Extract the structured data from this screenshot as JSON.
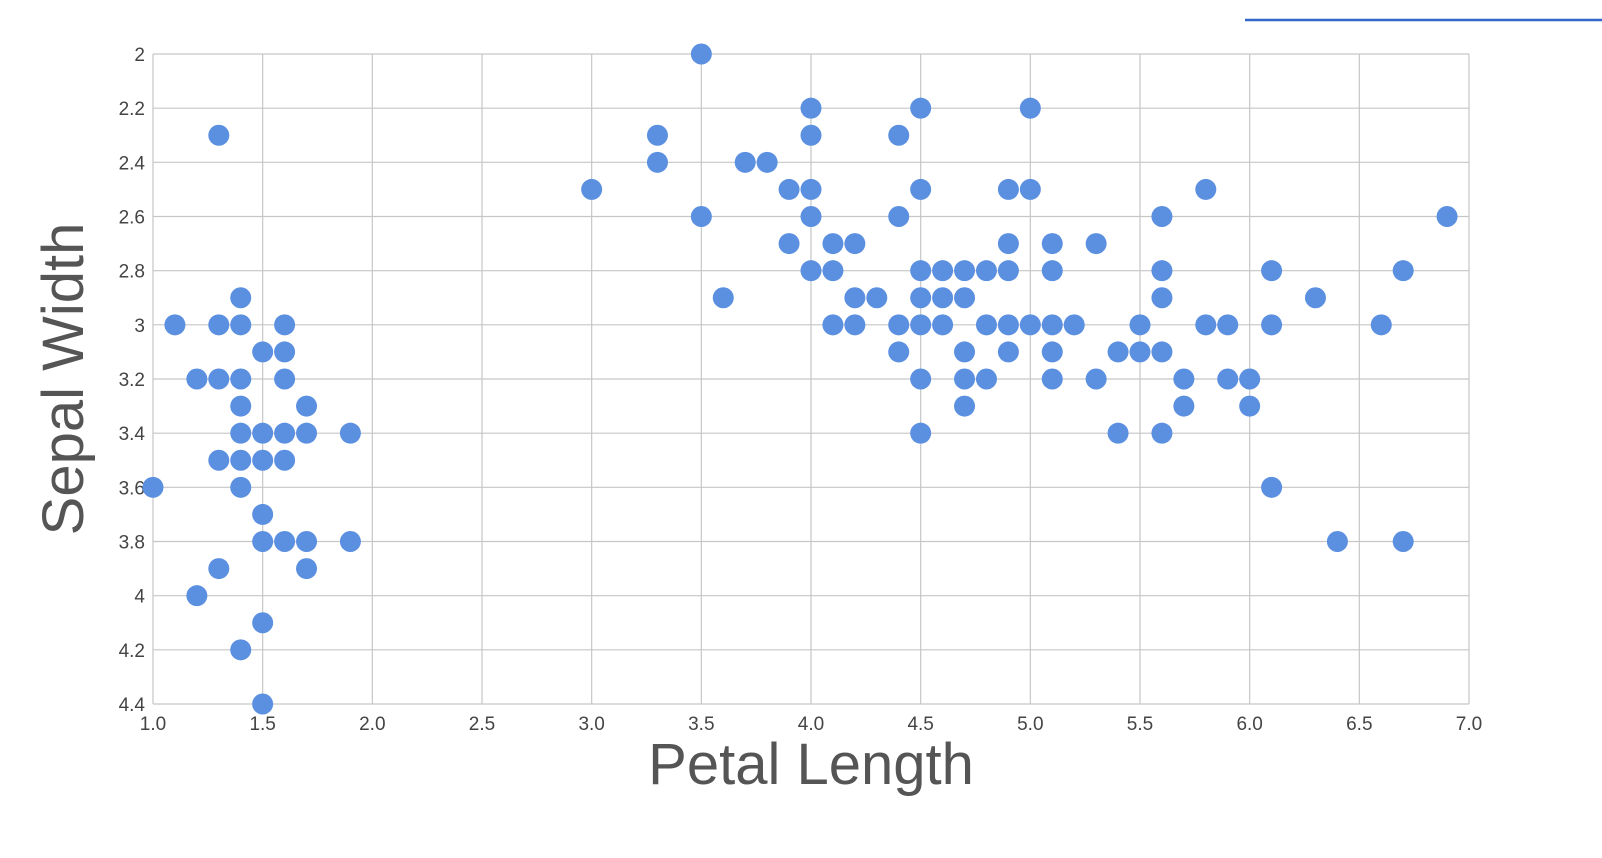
{
  "chart_data": {
    "type": "scatter",
    "title": "",
    "xlabel": "Petal Length",
    "ylabel": "Sepal Width",
    "xlim": [
      1.0,
      7.0
    ],
    "ylim": [
      2.0,
      4.4
    ],
    "y_axis_reversed": true,
    "grid": true,
    "x_ticks": [
      "1.0",
      "1.5",
      "2.0",
      "2.5",
      "3.0",
      "3.5",
      "4.0",
      "4.5",
      "5.0",
      "5.5",
      "6.0",
      "6.5",
      "7.0"
    ],
    "y_ticks": [
      "2",
      "2.2",
      "2.4",
      "2.6",
      "2.8",
      "3",
      "3.2",
      "3.4",
      "3.6",
      "3.8",
      "4",
      "4.2",
      "4.4"
    ],
    "series_color": "#5b8fe0",
    "legend_line_color": "#3366cc",
    "series": [
      {
        "points": [
          [
            1.0,
            3.6
          ],
          [
            1.1,
            3.0
          ],
          [
            1.2,
            3.2
          ],
          [
            1.2,
            4.0
          ],
          [
            1.3,
            2.3
          ],
          [
            1.3,
            3.0
          ],
          [
            1.3,
            3.2
          ],
          [
            1.3,
            3.5
          ],
          [
            1.3,
            3.9
          ],
          [
            1.4,
            2.9
          ],
          [
            1.4,
            3.0
          ],
          [
            1.4,
            3.2
          ],
          [
            1.4,
            3.3
          ],
          [
            1.4,
            3.4
          ],
          [
            1.4,
            3.5
          ],
          [
            1.4,
            3.6
          ],
          [
            1.4,
            4.2
          ],
          [
            1.5,
            3.1
          ],
          [
            1.5,
            3.4
          ],
          [
            1.5,
            3.5
          ],
          [
            1.5,
            3.7
          ],
          [
            1.5,
            3.8
          ],
          [
            1.5,
            4.1
          ],
          [
            1.5,
            4.4
          ],
          [
            1.6,
            3.0
          ],
          [
            1.6,
            3.1
          ],
          [
            1.6,
            3.2
          ],
          [
            1.6,
            3.4
          ],
          [
            1.6,
            3.5
          ],
          [
            1.6,
            3.8
          ],
          [
            1.7,
            3.3
          ],
          [
            1.7,
            3.4
          ],
          [
            1.7,
            3.8
          ],
          [
            1.7,
            3.9
          ],
          [
            1.9,
            3.4
          ],
          [
            1.9,
            3.8
          ],
          [
            3.0,
            2.5
          ],
          [
            3.3,
            2.3
          ],
          [
            3.3,
            2.4
          ],
          [
            3.5,
            2.0
          ],
          [
            3.5,
            2.6
          ],
          [
            3.6,
            2.9
          ],
          [
            3.7,
            2.4
          ],
          [
            3.8,
            2.4
          ],
          [
            3.9,
            2.5
          ],
          [
            3.9,
            2.7
          ],
          [
            4.0,
            2.2
          ],
          [
            4.0,
            2.3
          ],
          [
            4.0,
            2.5
          ],
          [
            4.0,
            2.6
          ],
          [
            4.0,
            2.8
          ],
          [
            4.1,
            2.7
          ],
          [
            4.1,
            2.8
          ],
          [
            4.1,
            3.0
          ],
          [
            4.2,
            2.7
          ],
          [
            4.2,
            2.9
          ],
          [
            4.2,
            3.0
          ],
          [
            4.3,
            2.9
          ],
          [
            4.4,
            2.3
          ],
          [
            4.4,
            2.6
          ],
          [
            4.4,
            3.0
          ],
          [
            4.4,
            3.1
          ],
          [
            4.5,
            2.2
          ],
          [
            4.5,
            2.5
          ],
          [
            4.5,
            2.8
          ],
          [
            4.5,
            2.9
          ],
          [
            4.5,
            3.0
          ],
          [
            4.5,
            3.2
          ],
          [
            4.5,
            3.4
          ],
          [
            4.6,
            2.8
          ],
          [
            4.6,
            2.9
          ],
          [
            4.6,
            3.0
          ],
          [
            4.7,
            2.8
          ],
          [
            4.7,
            2.9
          ],
          [
            4.7,
            3.1
          ],
          [
            4.7,
            3.2
          ],
          [
            4.7,
            3.3
          ],
          [
            4.8,
            2.8
          ],
          [
            4.8,
            3.0
          ],
          [
            4.8,
            3.2
          ],
          [
            4.9,
            2.5
          ],
          [
            4.9,
            2.7
          ],
          [
            4.9,
            2.8
          ],
          [
            4.9,
            3.0
          ],
          [
            4.9,
            3.1
          ],
          [
            5.0,
            2.2
          ],
          [
            5.0,
            2.5
          ],
          [
            5.0,
            3.0
          ],
          [
            5.1,
            2.7
          ],
          [
            5.1,
            2.8
          ],
          [
            5.1,
            3.0
          ],
          [
            5.1,
            3.1
          ],
          [
            5.1,
            3.2
          ],
          [
            5.2,
            3.0
          ],
          [
            5.3,
            2.7
          ],
          [
            5.3,
            3.2
          ],
          [
            5.4,
            3.1
          ],
          [
            5.4,
            3.4
          ],
          [
            5.5,
            3.0
          ],
          [
            5.5,
            3.1
          ],
          [
            5.6,
            2.6
          ],
          [
            5.6,
            2.8
          ],
          [
            5.6,
            2.9
          ],
          [
            5.6,
            3.1
          ],
          [
            5.6,
            3.4
          ],
          [
            5.7,
            3.2
          ],
          [
            5.7,
            3.3
          ],
          [
            5.8,
            2.5
          ],
          [
            5.8,
            3.0
          ],
          [
            5.9,
            3.0
          ],
          [
            5.9,
            3.2
          ],
          [
            6.0,
            3.2
          ],
          [
            6.0,
            3.3
          ],
          [
            6.1,
            2.8
          ],
          [
            6.1,
            3.0
          ],
          [
            6.1,
            3.6
          ],
          [
            6.3,
            2.9
          ],
          [
            6.4,
            3.8
          ],
          [
            6.6,
            3.0
          ],
          [
            6.7,
            2.8
          ],
          [
            6.7,
            3.8
          ],
          [
            6.9,
            2.6
          ]
        ]
      }
    ]
  }
}
